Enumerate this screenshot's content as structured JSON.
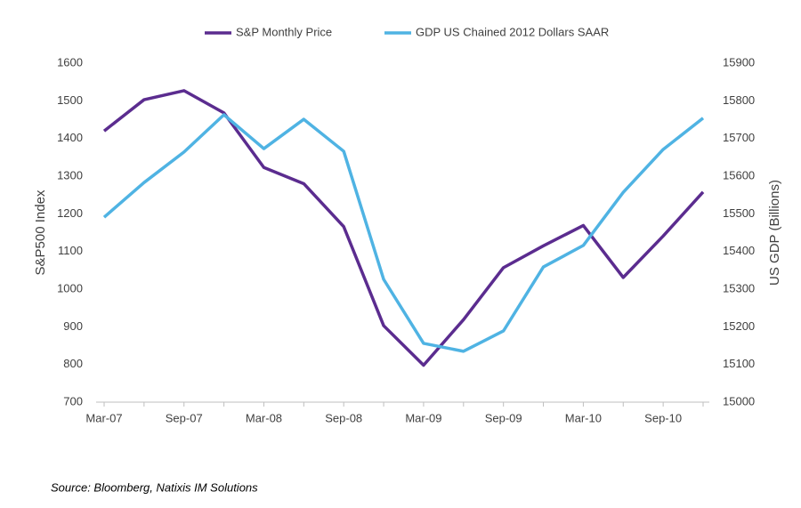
{
  "chart_data": {
    "type": "line",
    "y_label": "S&P500 Index",
    "y2_label": "US GDP (Billions)",
    "source": "Source: Bloomberg, Natixis IM Solutions",
    "categories": [
      "Mar-07",
      null,
      "Sep-07",
      null,
      "Mar-08",
      null,
      "Sep-08",
      null,
      "Mar-09",
      null,
      "Sep-09",
      null,
      "Mar-10",
      null,
      "Sep-10",
      null
    ],
    "series": [
      {
        "name": "S&P Monthly Price",
        "color": "#5b2c8f",
        "values": [
          1420,
          1503,
          1527,
          1468,
          1323,
          1280,
          1166,
          903,
          798,
          919,
          1057,
          1115,
          1169,
          1031,
          1141,
          1258
        ]
      },
      {
        "name": "GDP US Chained 2012 Dollars SAAR",
        "color": "#4fb3e3",
        "axis": "y2",
        "values": [
          15491,
          15583,
          15664,
          15763,
          15673,
          15751,
          15666,
          15326,
          15156,
          15135,
          15189,
          15359,
          15416,
          15557,
          15671,
          15754
        ]
      }
    ],
    "ylim": [
      700,
      1600
    ],
    "yticks": [
      700,
      800,
      900,
      1000,
      1100,
      1200,
      1300,
      1400,
      1500,
      1600
    ],
    "y2lim": [
      15000,
      15900
    ],
    "y2ticks": [
      15000,
      15100,
      15200,
      15300,
      15400,
      15500,
      15600,
      15700,
      15800,
      15900
    ],
    "legend": "top",
    "grid": false
  }
}
